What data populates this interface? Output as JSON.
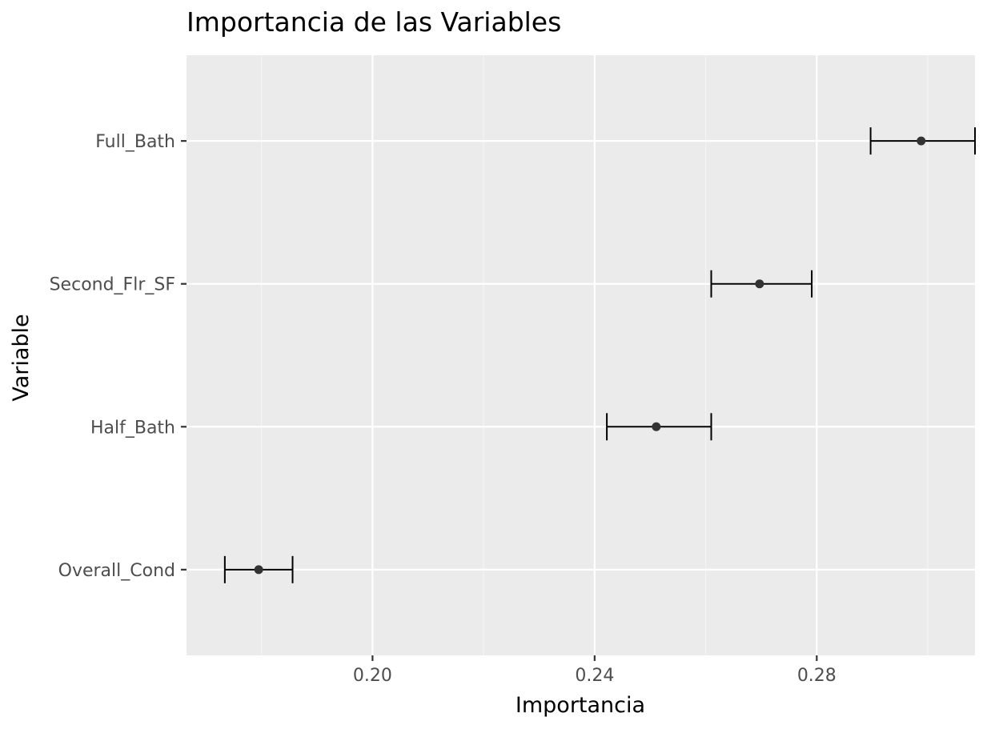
{
  "chart_data": {
    "type": "errorbar",
    "title": "Importancia de las Variables",
    "xlabel": "Importancia",
    "ylabel": "Variable",
    "xlim": [
      0.1665,
      0.3085
    ],
    "x_ticks": [
      0.2,
      0.24,
      0.28
    ],
    "x_tick_labels": [
      "0.20",
      "0.24",
      "0.28"
    ],
    "categories": [
      "Full_Bath",
      "Second_Flr_SF",
      "Half_Bath",
      "Overall_Cond"
    ],
    "values": [
      0.2988,
      0.2697,
      0.2511,
      0.1795
    ],
    "lower": [
      0.2897,
      0.261,
      0.2422,
      0.1734
    ],
    "upper": [
      0.3085,
      0.2791,
      0.261,
      0.1856
    ],
    "grid": true,
    "colors": {
      "panel": "#ebebeb",
      "grid_major": "#ffffff",
      "grid_minor": "#f5f5f5",
      "point": "#333333",
      "errorbar": "#000000",
      "tick_label": "#4d4d4d"
    }
  }
}
